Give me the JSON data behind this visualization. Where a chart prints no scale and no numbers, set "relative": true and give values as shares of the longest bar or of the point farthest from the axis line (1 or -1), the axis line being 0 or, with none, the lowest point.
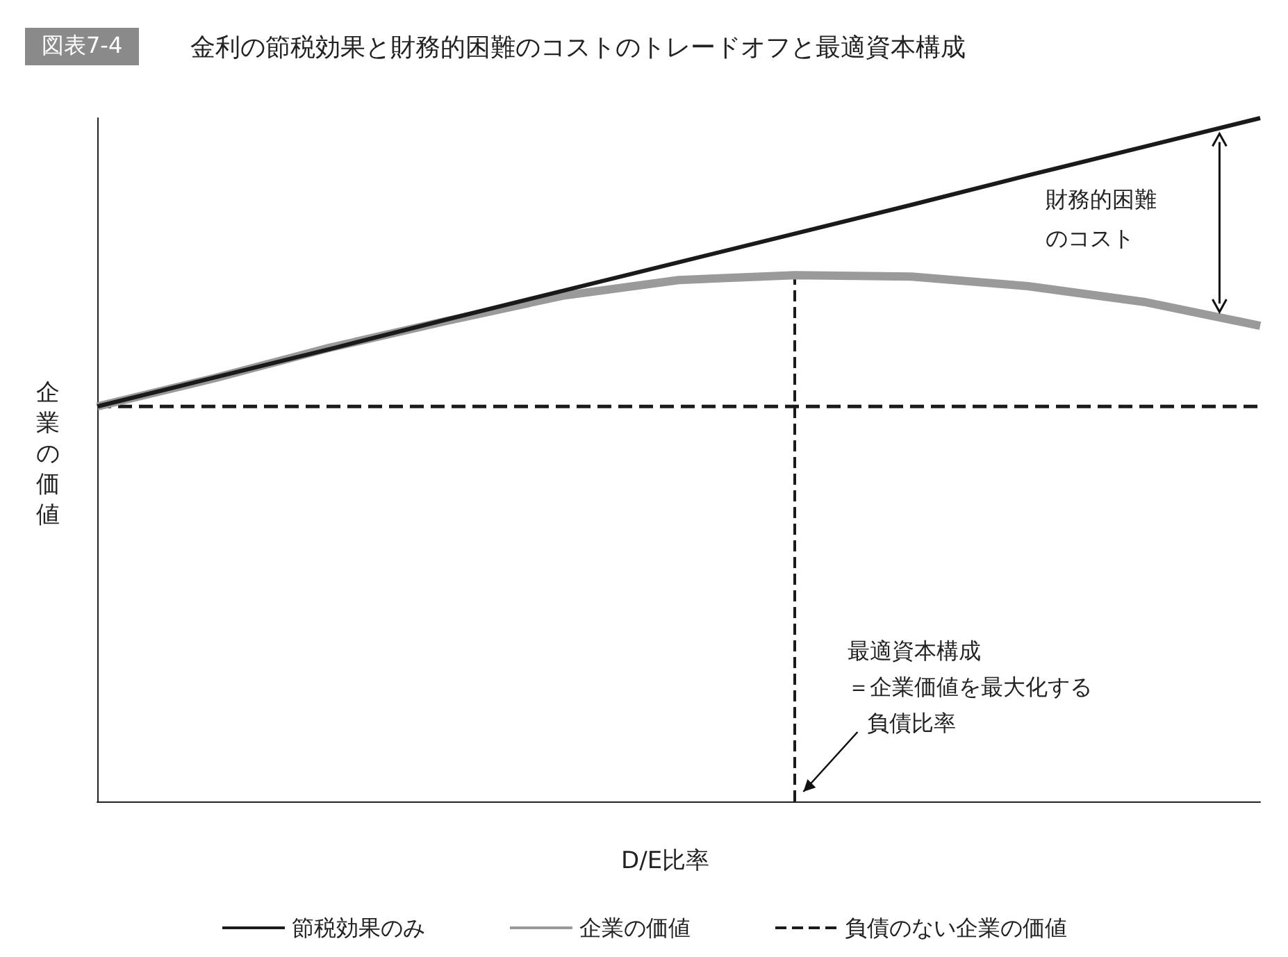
{
  "chart_data": {
    "type": "line",
    "title": "金利の節税効果と財務的困難のコストのトレードオフと最適資本構成",
    "xlabel": "D/E比率",
    "ylabel": "企業の価値",
    "annotations": [
      "図表7-4",
      "財務的困難",
      "のコスト",
      "最適資本構成",
      "＝企業価値を最大化する",
      "負債比率"
    ],
    "categories": [
      null,
      null,
      null,
      null,
      null,
      null,
      null,
      null,
      null,
      null,
      null
    ],
    "relative": true,
    "series": [
      {
        "name": "節税効果のみ",
        "color": "#1a1a1a",
        "line_style": "solid",
        "values": [
          0.578,
          0.62,
          0.662,
          0.705,
          0.747,
          0.789,
          0.831,
          0.873,
          0.916,
          0.958,
          1.0
        ]
      },
      {
        "name": "企業の価値",
        "color": "#9a9a9a",
        "line_style": "solid",
        "values": [
          0.578,
          0.619,
          0.664,
          0.703,
          0.74,
          0.763,
          0.77,
          0.768,
          0.754,
          0.731,
          0.696
        ]
      },
      {
        "name": "負債のない企業の価値",
        "color": "#1a1a1a",
        "line_style": "dashed",
        "values": [
          0.578,
          0.578,
          0.578,
          0.578,
          0.578,
          0.578,
          0.578,
          0.578,
          0.578,
          0.578,
          0.578
        ]
      }
    ],
    "grid": false,
    "legend": "bottom",
    "marker": "none"
  }
}
